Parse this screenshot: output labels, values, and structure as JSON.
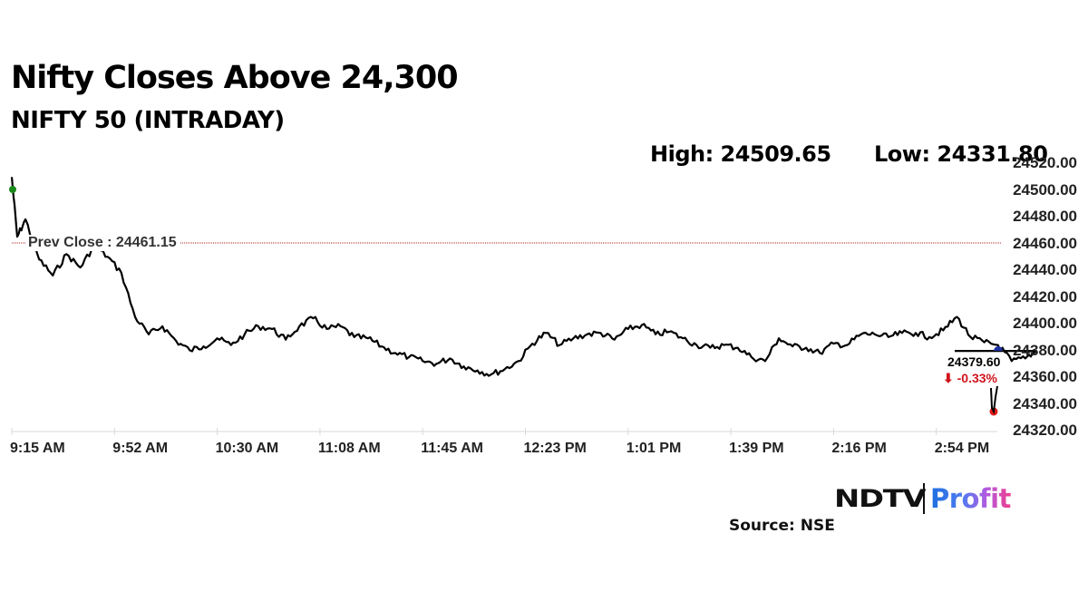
{
  "header": {
    "title": "Nifty Closes Above 24,300",
    "subtitle": "NIFTY 50 (INTRADAY)",
    "high_label": "High: 24509.65",
    "low_label": "Low: 24331.80"
  },
  "annotations": {
    "prev_close_label": "Prev Close : 24461.15",
    "last_value": "24379.60",
    "change": "⬇ -0.33%"
  },
  "footer": {
    "brand_left": "NDTV",
    "brand_right": "Profit",
    "source": "Source: NSE"
  },
  "colors": {
    "line": "#000000",
    "prev_close_line": "#b22222",
    "high_marker": "#1a8a1a",
    "low_marker": "#e01b1b",
    "current_marker": "#1c2fa0",
    "change_negative": "#d0141c"
  },
  "chart_data": {
    "type": "line",
    "title": "NIFTY 50 (INTRADAY)",
    "xlabel": "",
    "ylabel": "",
    "ylim": [
      24320,
      24520
    ],
    "grid": false,
    "y_ticks": [
      "24520.00",
      "24500.00",
      "24480.00",
      "24460.00",
      "24440.00",
      "24420.00",
      "24400.00",
      "24380.00",
      "24360.00",
      "24340.00",
      "24320.00"
    ],
    "x_ticks": [
      "9:15 AM",
      "9:52 AM",
      "10:30 AM",
      "11:08 AM",
      "11:45 AM",
      "12:23 PM",
      "1:01 PM",
      "1:39 PM",
      "2:16 PM",
      "2:54 PM"
    ],
    "prev_close": 24461.15,
    "high": 24509.65,
    "low": 24331.8,
    "last": 24379.6,
    "change_pct": -0.33,
    "series": [
      {
        "name": "NIFTY 50",
        "x": [
          "9:15",
          "9:17",
          "9:20",
          "9:25",
          "9:30",
          "9:35",
          "9:40",
          "9:45",
          "9:50",
          "9:55",
          "10:00",
          "10:05",
          "10:10",
          "10:15",
          "10:20",
          "10:25",
          "10:30",
          "10:35",
          "10:40",
          "10:45",
          "10:50",
          "10:55",
          "11:00",
          "11:05",
          "11:10",
          "11:15",
          "11:20",
          "11:25",
          "11:30",
          "11:35",
          "11:40",
          "11:45",
          "11:50",
          "11:55",
          "12:00",
          "12:05",
          "12:10",
          "12:15",
          "12:20",
          "12:25",
          "12:30",
          "12:35",
          "12:40",
          "12:45",
          "12:50",
          "12:55",
          "13:00",
          "13:05",
          "13:10",
          "13:15",
          "13:20",
          "13:25",
          "13:30",
          "13:35",
          "13:40",
          "13:45",
          "13:50",
          "13:55",
          "14:00",
          "14:05",
          "14:10",
          "14:15",
          "14:20",
          "14:25",
          "14:30",
          "14:35",
          "14:40",
          "14:45",
          "14:50",
          "14:55",
          "15:00",
          "15:05",
          "15:10",
          "15:15",
          "15:20",
          "15:25",
          "15:29"
        ],
        "values": [
          24509.65,
          24465,
          24478,
          24448,
          24436,
          24452,
          24442,
          24458,
          24450,
          24438,
          24405,
          24392,
          24398,
          24387,
          24380,
          24383,
          24389,
          24384,
          24392,
          24398,
          24396,
          24388,
          24398,
          24404,
          24396,
          24398,
          24390,
          24389,
          24383,
          24378,
          24375,
          24372,
          24370,
          24374,
          24368,
          24365,
          24362,
          24366,
          24372,
          24385,
          24393,
          24384,
          24389,
          24392,
          24393,
          24388,
          24396,
          24399,
          24392,
          24394,
          24389,
          24384,
          24382,
          24384,
          24382,
          24375,
          24372,
          24389,
          24383,
          24382,
          24378,
          24385,
          24384,
          24392,
          24392,
          24390,
          24393,
          24393,
          24390,
          24395,
          24405,
          24390,
          24386,
          24384,
          24372,
          24374,
          24379.6
        ],
        "note": "values approximated from plotted line"
      }
    ]
  }
}
